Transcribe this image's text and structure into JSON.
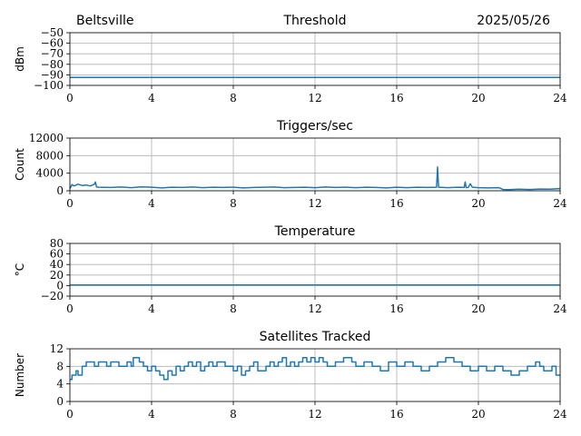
{
  "header": {
    "location": "Beltsville",
    "date": "2025/05/26"
  },
  "chart_data": [
    {
      "type": "line",
      "title": "Threshold",
      "xlabel": "",
      "ylabel": "dBm",
      "xlim": [
        0,
        24
      ],
      "ylim": [
        -100,
        -50
      ],
      "xticks": [
        "0",
        "4",
        "8",
        "12",
        "16",
        "20",
        "24"
      ],
      "yticks": [
        "−50",
        "−60",
        "−70",
        "−80",
        "−90",
        "−100"
      ],
      "ytick_values": [
        -50,
        -60,
        -70,
        -80,
        -90,
        -100
      ],
      "grid": true,
      "color": "#1f77b4",
      "series": [
        {
          "x": [
            0,
            24
          ],
          "y": [
            -92.5,
            -92.5
          ]
        }
      ]
    },
    {
      "type": "line",
      "title": "Triggers/sec",
      "xlabel": "",
      "ylabel": "Count",
      "xlim": [
        0,
        24
      ],
      "ylim": [
        0,
        12000
      ],
      "xticks": [
        "0",
        "4",
        "8",
        "12",
        "16",
        "20",
        "24"
      ],
      "yticks": [
        "12000",
        "8000",
        "4000",
        "0"
      ],
      "ytick_values": [
        12000,
        8000,
        4000,
        0
      ],
      "grid": true,
      "color": "#1f77b4",
      "series": [
        {
          "x": [
            0,
            0.1,
            0.2,
            0.4,
            0.6,
            0.8,
            1.0,
            1.2,
            1.25,
            1.3,
            1.4,
            2,
            2.5,
            3,
            3.5,
            4,
            4.5,
            5,
            5.5,
            6,
            6.5,
            7,
            7.5,
            8,
            8.5,
            9,
            9.5,
            10,
            10.5,
            11,
            11.5,
            12,
            12.5,
            13,
            13.5,
            14,
            14.5,
            15,
            15.5,
            16,
            16.5,
            17,
            17.5,
            17.95,
            18.0,
            18.05,
            18.5,
            19,
            19.3,
            19.35,
            19.4,
            19.5,
            19.6,
            19.7,
            20,
            20.5,
            21,
            21.2,
            21.5,
            22,
            22.5,
            23,
            23.5,
            24
          ],
          "y": [
            500,
            1400,
            1100,
            1500,
            1200,
            1300,
            1100,
            1500,
            2000,
            900,
            800,
            750,
            850,
            700,
            900,
            800,
            650,
            800,
            750,
            850,
            700,
            800,
            750,
            800,
            650,
            750,
            800,
            850,
            700,
            750,
            800,
            700,
            850,
            750,
            800,
            700,
            800,
            750,
            650,
            800,
            700,
            800,
            750,
            800,
            5400,
            800,
            700,
            800,
            750,
            2000,
            700,
            750,
            1600,
            800,
            700,
            650,
            700,
            300,
            250,
            350,
            300,
            400,
            350,
            500
          ]
        }
      ]
    },
    {
      "type": "line",
      "title": "Temperature",
      "xlabel": "",
      "ylabel": "°C",
      "xlim": [
        0,
        24
      ],
      "ylim": [
        -20,
        80
      ],
      "xticks": [
        "0",
        "4",
        "8",
        "12",
        "16",
        "20",
        "24"
      ],
      "yticks": [
        "80",
        "60",
        "40",
        "20",
        "0",
        "−20"
      ],
      "ytick_values": [
        80,
        60,
        40,
        20,
        0,
        -20
      ],
      "grid": true,
      "color": "#1f77b4",
      "series": [
        {
          "x": [
            0,
            24
          ],
          "y": [
            1,
            1
          ]
        }
      ]
    },
    {
      "type": "line",
      "title": "Satellites Tracked",
      "xlabel": "",
      "ylabel": "Number",
      "xlim": [
        0,
        24
      ],
      "ylim": [
        0,
        12
      ],
      "xticks": [
        "0",
        "4",
        "8",
        "12",
        "16",
        "20",
        "24"
      ],
      "yticks": [
        "12",
        "8",
        "4",
        "0"
      ],
      "ytick_values": [
        12,
        8,
        4,
        0
      ],
      "grid": true,
      "color": "#1f77b4",
      "step": true,
      "series": [
        {
          "x": [
            0,
            0.1,
            0.3,
            0.4,
            0.6,
            0.8,
            1.2,
            1.4,
            1.8,
            2.0,
            2.4,
            2.8,
            3.0,
            3.1,
            3.4,
            3.6,
            3.8,
            4.0,
            4.2,
            4.4,
            4.6,
            4.8,
            5.0,
            5.2,
            5.4,
            5.6,
            5.8,
            6.0,
            6.2,
            6.4,
            6.6,
            6.8,
            7.0,
            7.2,
            7.6,
            8.0,
            8.2,
            8.4,
            8.6,
            8.8,
            9.0,
            9.2,
            9.6,
            9.8,
            10.0,
            10.2,
            10.4,
            10.6,
            10.8,
            11.0,
            11.2,
            11.4,
            11.6,
            11.8,
            12.0,
            12.2,
            12.4,
            12.6,
            13.0,
            13.4,
            13.8,
            14.0,
            14.4,
            14.8,
            15.2,
            15.6,
            16.0,
            16.4,
            16.8,
            17.2,
            17.6,
            18.0,
            18.4,
            18.8,
            19.2,
            19.6,
            20.0,
            20.4,
            20.8,
            21.2,
            21.6,
            22.0,
            22.4,
            22.8,
            23.0,
            23.2,
            23.6,
            23.8,
            24.0
          ],
          "y": [
            5,
            6,
            7,
            6,
            8,
            9,
            8,
            9,
            8,
            9,
            8,
            9,
            8,
            10,
            9,
            8,
            7,
            8,
            7,
            6,
            5,
            7,
            6,
            8,
            7,
            8,
            9,
            8,
            9,
            7,
            8,
            9,
            8,
            9,
            8,
            7,
            8,
            6,
            7,
            8,
            9,
            7,
            8,
            9,
            8,
            9,
            10,
            8,
            9,
            8,
            9,
            10,
            9,
            10,
            9,
            10,
            9,
            8,
            9,
            10,
            9,
            8,
            9,
            8,
            7,
            9,
            8,
            9,
            8,
            7,
            8,
            9,
            10,
            9,
            8,
            7,
            8,
            7,
            8,
            7,
            6,
            7,
            8,
            9,
            8,
            7,
            8,
            6,
            6
          ]
        }
      ]
    }
  ]
}
